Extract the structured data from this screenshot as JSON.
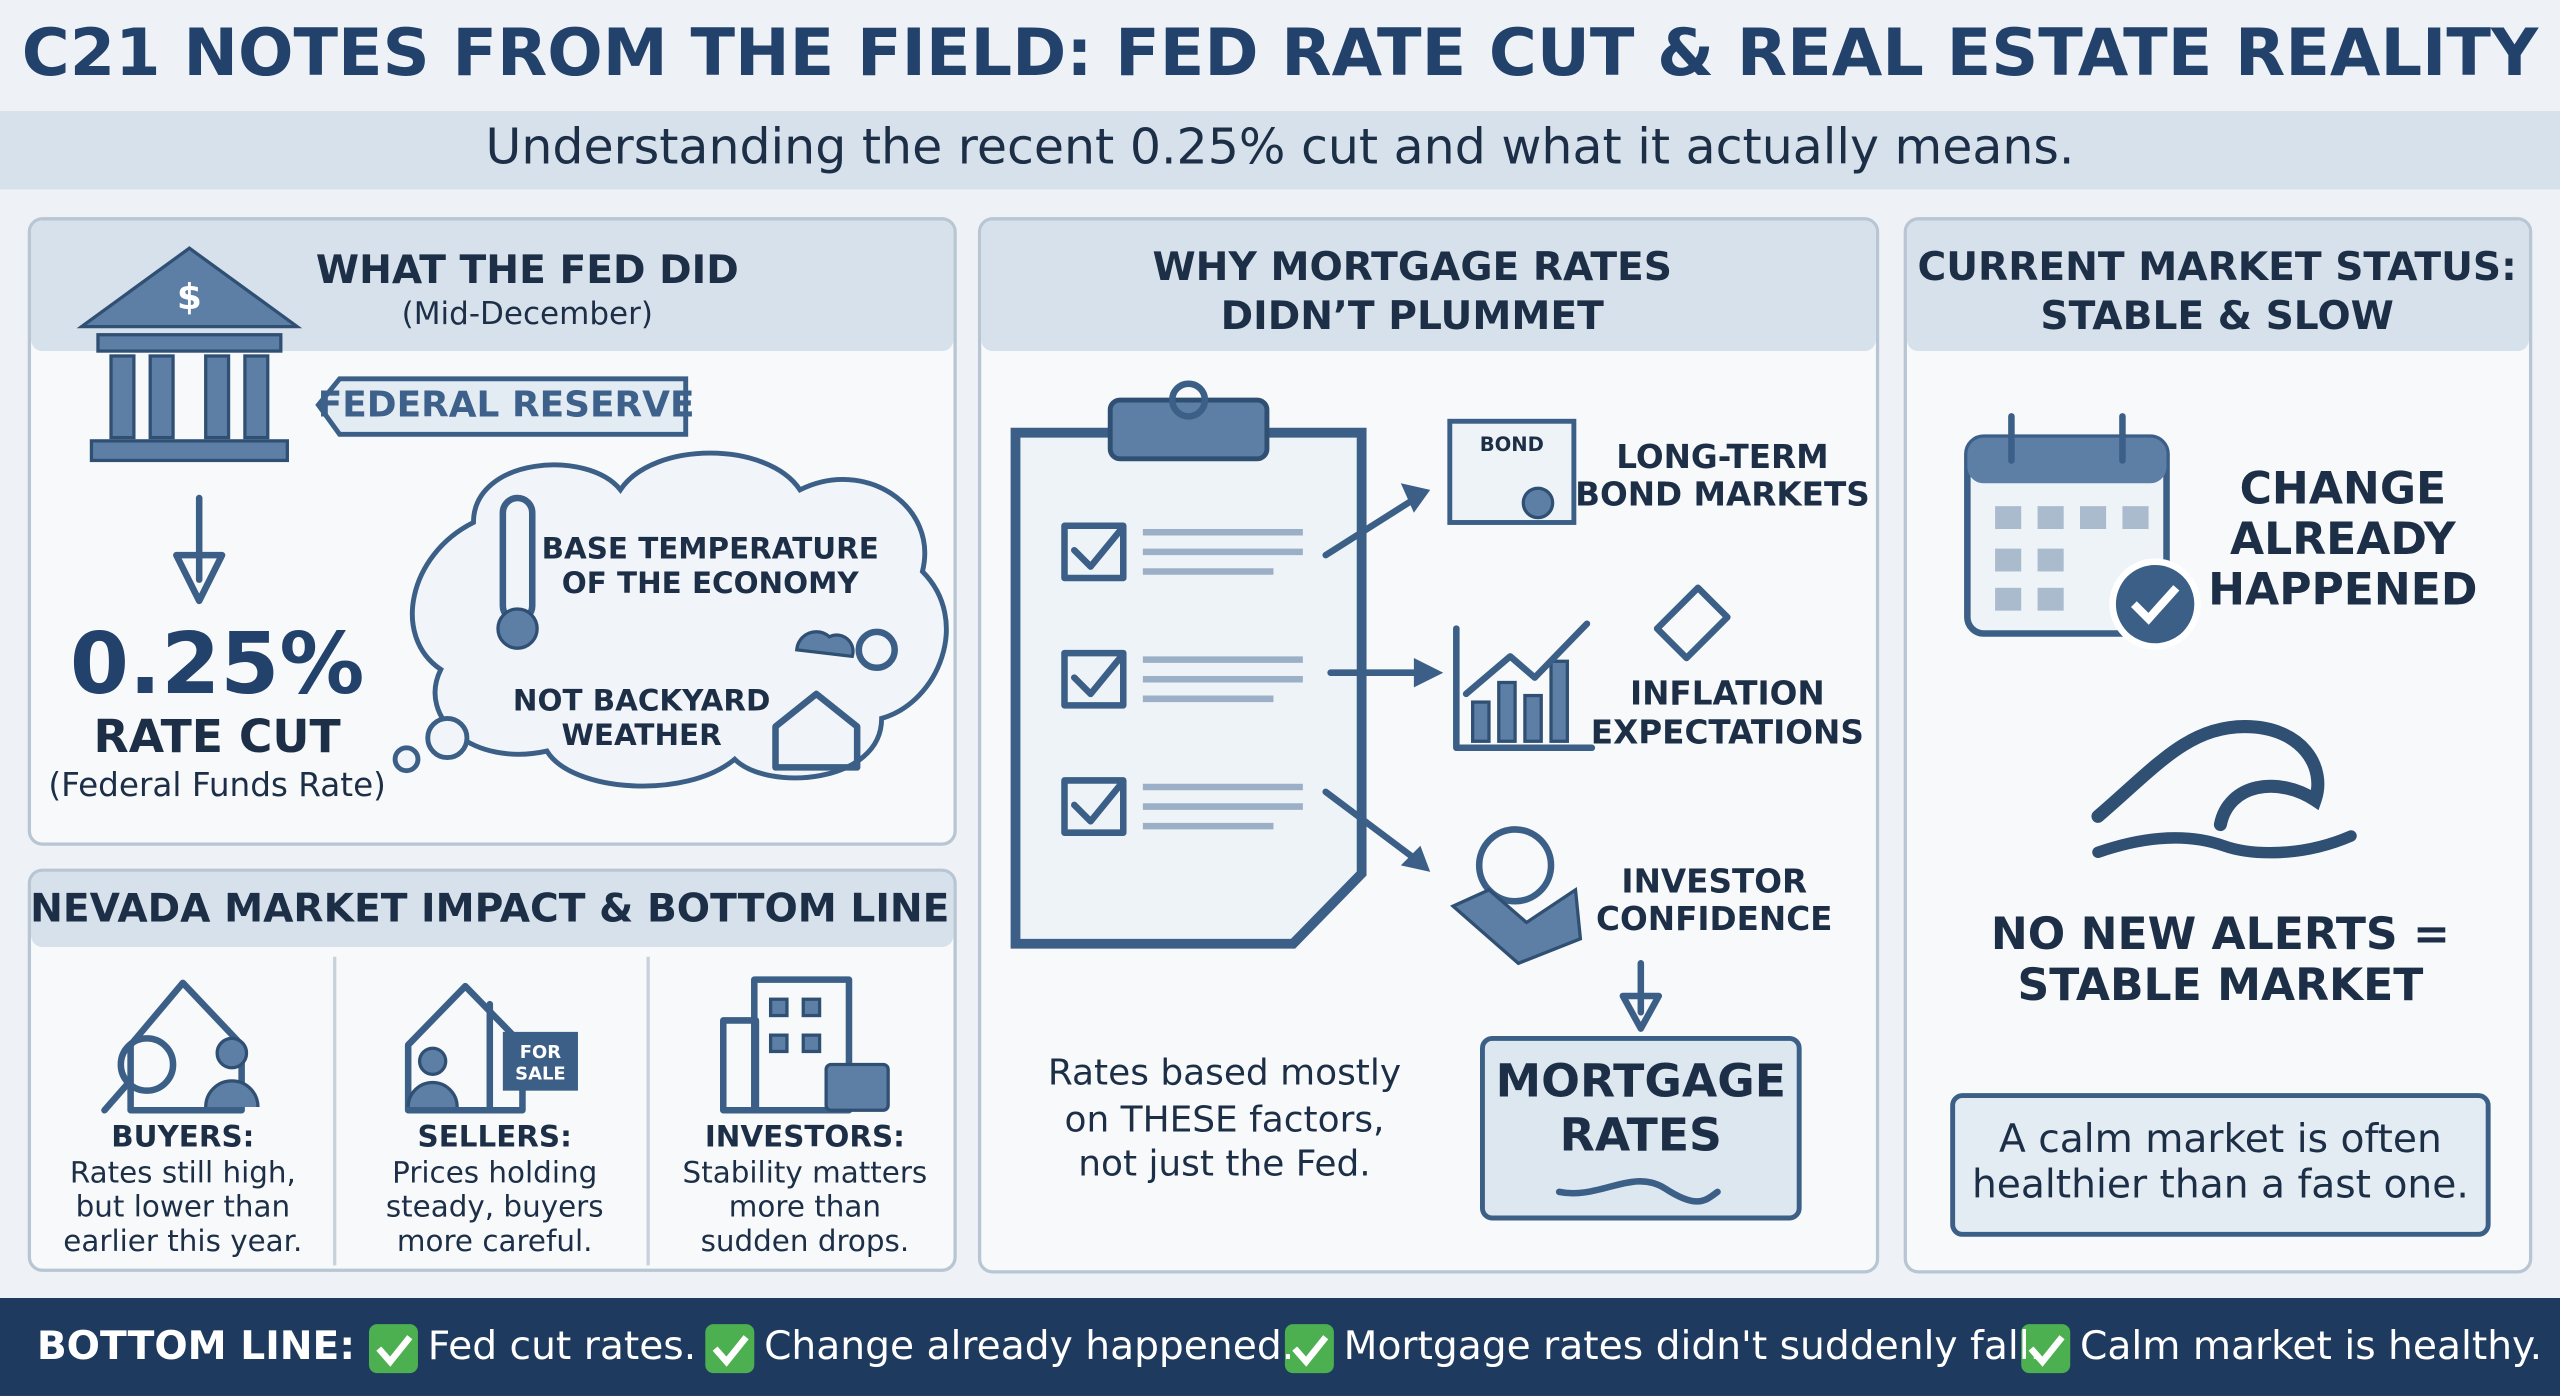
{
  "header": {
    "title": "C21 NOTES FROM THE FIELD: FED RATE CUT & REAL ESTATE REALITY",
    "subtitle": "Understanding the recent 0.25% cut and what it actually means."
  },
  "fed_panel": {
    "title": "WHAT THE FED DID",
    "subtitle": "(Mid-December)",
    "badge": "FEDERAL RESERVE",
    "rate": "0.25%",
    "rate_label": "RATE CUT",
    "rate_note": "(Federal Funds Rate)",
    "thought_top": [
      "BASE TEMPERATURE",
      "OF THE ECONOMY"
    ],
    "thought_bottom": [
      "NOT BACKYARD",
      "WEATHER"
    ]
  },
  "nevada_panel": {
    "title": "NEVADA MARKET IMPACT & BOTTOM LINE",
    "sign": [
      "FOR",
      "SALE"
    ],
    "items": [
      {
        "title": "BUYERS:",
        "lines": [
          "Rates still high,",
          "but lower than",
          "earlier this year."
        ]
      },
      {
        "title": "SELLERS:",
        "lines": [
          "Prices holding",
          "steady, buyers",
          "more careful."
        ]
      },
      {
        "title": "INVESTORS:",
        "lines": [
          "Stability matters",
          "more than",
          "sudden drops."
        ]
      }
    ]
  },
  "mortgage_panel": {
    "title": [
      "WHY MORTGAGE RATES",
      "DIDN’T PLUMMET"
    ],
    "bond_label": "BOND",
    "factors": [
      {
        "label": [
          "LONG-TERM",
          "BOND MARKETS"
        ]
      },
      {
        "label": [
          "INFLATION",
          "EXPECTATIONS"
        ]
      },
      {
        "label": [
          "INVESTOR",
          "CONFIDENCE"
        ]
      }
    ],
    "note": [
      "Rates based mostly",
      "on THESE factors,",
      "not just the Fed."
    ],
    "result": [
      "MORTGAGE",
      "RATES"
    ]
  },
  "market_panel": {
    "title": [
      "CURRENT MARKET STATUS:",
      "STABLE & SLOW"
    ],
    "change": [
      "CHANGE",
      "ALREADY",
      "HAPPENED"
    ],
    "alerts": [
      "NO NEW ALERTS =",
      "STABLE MARKET"
    ],
    "calm": [
      "A calm market is often",
      "healthier than a fast one."
    ]
  },
  "bottom_bar": {
    "label": "BOTTOM LINE:",
    "items": [
      "Fed cut rates.",
      "Change already happened.",
      "Mortgage rates didn't suddenly fall.",
      "Calm market is healthy."
    ]
  }
}
